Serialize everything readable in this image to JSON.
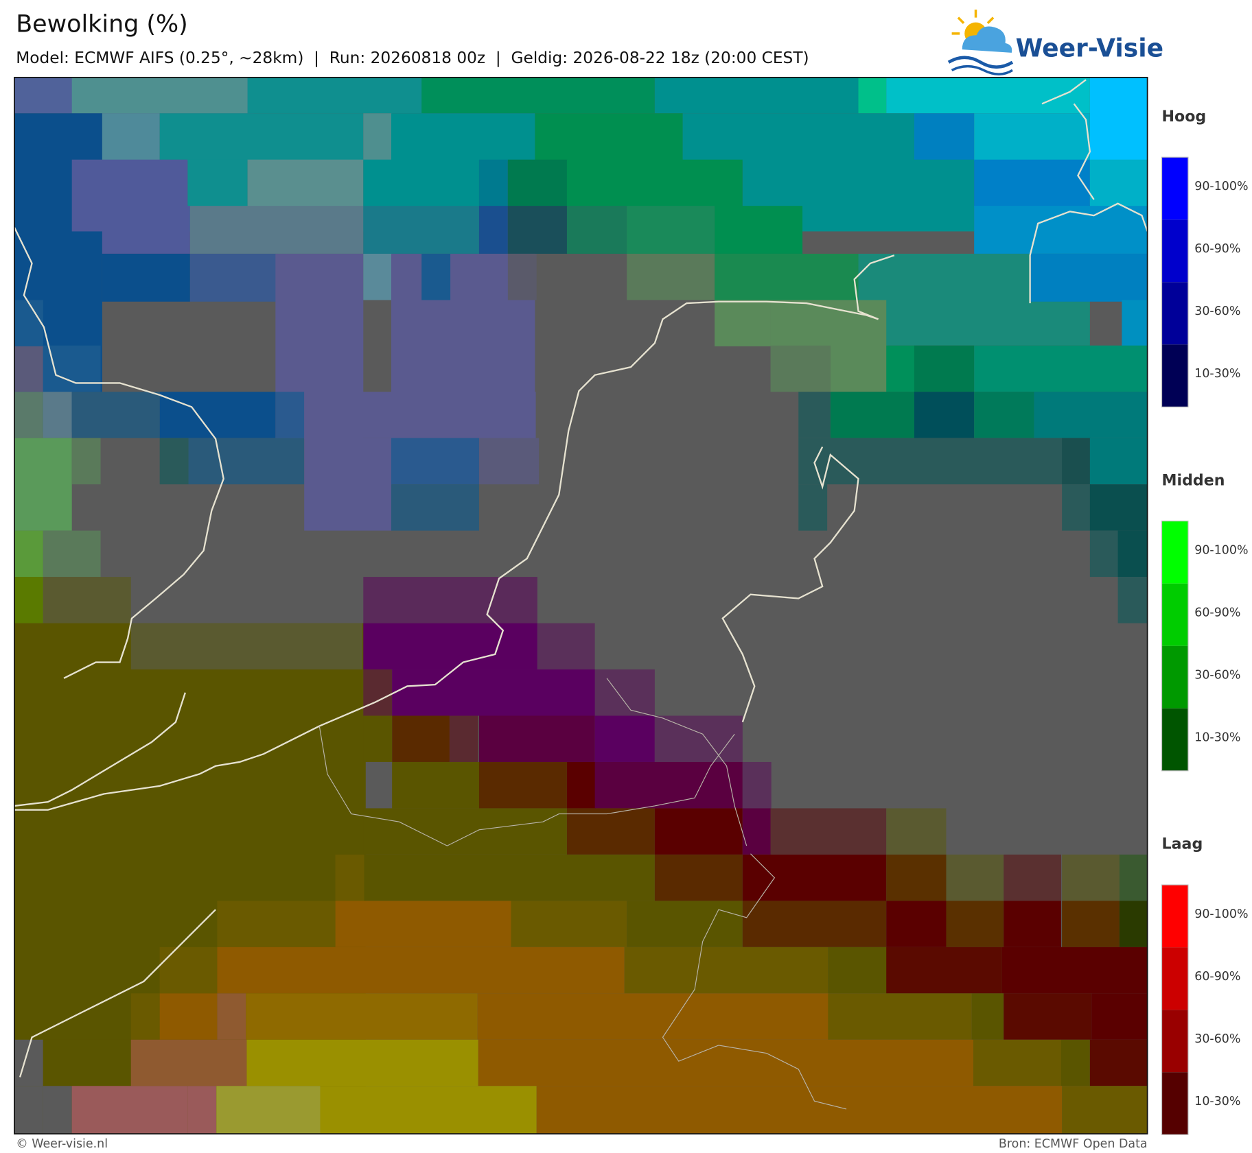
{
  "header": {
    "title": "Bewolking (%)",
    "subtitle": "Model: ECMWF AIFS (0.25°, ~28km)  |  Run: 20260818 00z  |  Geldig: 2026-08-22 18z (20:00 CEST)",
    "logo": "Weer-Visie"
  },
  "legend": [
    {
      "title": "Hoog",
      "labels": [
        "90-100%",
        "60-90%",
        "30-60%",
        "10-30%"
      ],
      "colors": [
        "#0000ff",
        "#0000cc",
        "#000099",
        "#000055"
      ]
    },
    {
      "title": "Midden",
      "labels": [
        "90-100%",
        "60-90%",
        "30-60%",
        "10-30%"
      ],
      "colors": [
        "#00ff00",
        "#00cc00",
        "#009900",
        "#005500"
      ]
    },
    {
      "title": "Laag",
      "labels": [
        "90-100%",
        "60-90%",
        "30-60%",
        "10-30%"
      ],
      "colors": [
        "#ff0000",
        "#cc0000",
        "#990000",
        "#550000"
      ]
    }
  ],
  "footer": {
    "left": "© Weer-visie.nl",
    "right": "Bron: ECMWF Open Data"
  }
}
